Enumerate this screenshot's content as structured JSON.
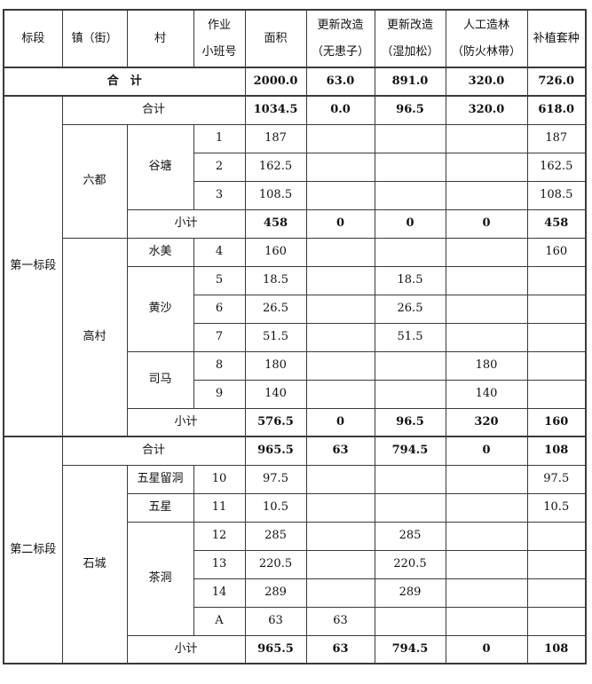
{
  "page": {
    "background": "#ffffff",
    "border_color": "#3a3a3a",
    "text_color": "#111111"
  },
  "table": {
    "header": [
      "标段",
      "镇（街）",
      "村",
      "作业\n小班号",
      "面积",
      "更新改造\n（无患子）",
      "更新改造\n（湿加松）",
      "人工造林\n（防火林带）",
      "补植套种"
    ],
    "rows": [
      {
        "type": "grand_total",
        "cells": [
          {
            "text": "合　计",
            "colspan": 4,
            "bold": true
          },
          {
            "text": "2000.0",
            "bold": true
          },
          {
            "text": "63.0",
            "bold": true
          },
          {
            "text": "891.0",
            "bold": true
          },
          {
            "text": "320.0",
            "bold": true
          },
          {
            "text": "726.0",
            "bold": true
          }
        ]
      },
      {
        "type": "section_total",
        "cells": [
          {
            "text": "第一标段",
            "rowspan": 12
          },
          {
            "text": "合计",
            "colspan": 3
          },
          {
            "text": "1034.5",
            "bold": true
          },
          {
            "text": "0.0",
            "bold": true
          },
          {
            "text": "96.5",
            "bold": true
          },
          {
            "text": "320.0",
            "bold": true
          },
          {
            "text": "618.0",
            "bold": true
          }
        ]
      },
      {
        "type": "data",
        "cells": [
          {
            "text": "六都",
            "rowspan": 4
          },
          {
            "text": "谷塘",
            "rowspan": 3
          },
          {
            "text": "1"
          },
          {
            "text": "187"
          },
          {
            "text": ""
          },
          {
            "text": ""
          },
          {
            "text": ""
          },
          {
            "text": "187"
          }
        ]
      },
      {
        "type": "data",
        "cells": [
          {
            "text": "2"
          },
          {
            "text": "162.5"
          },
          {
            "text": ""
          },
          {
            "text": ""
          },
          {
            "text": ""
          },
          {
            "text": "162.5"
          }
        ]
      },
      {
        "type": "data",
        "cells": [
          {
            "text": "3"
          },
          {
            "text": "108.5"
          },
          {
            "text": ""
          },
          {
            "text": ""
          },
          {
            "text": ""
          },
          {
            "text": "108.5"
          }
        ]
      },
      {
        "type": "subtotal",
        "cells": [
          {
            "text": "小计",
            "colspan": 2
          },
          {
            "text": "458",
            "bold": true
          },
          {
            "text": "0",
            "bold": true
          },
          {
            "text": "0",
            "bold": true
          },
          {
            "text": "0",
            "bold": true
          },
          {
            "text": "458",
            "bold": true
          }
        ]
      },
      {
        "type": "data",
        "cells": [
          {
            "text": "高村",
            "rowspan": 7
          },
          {
            "text": "水美"
          },
          {
            "text": "4"
          },
          {
            "text": "160"
          },
          {
            "text": ""
          },
          {
            "text": ""
          },
          {
            "text": ""
          },
          {
            "text": "160"
          }
        ]
      },
      {
        "type": "data",
        "cells": [
          {
            "text": "黄沙",
            "rowspan": 3
          },
          {
            "text": "5"
          },
          {
            "text": "18.5"
          },
          {
            "text": ""
          },
          {
            "text": "18.5"
          },
          {
            "text": ""
          },
          {
            "text": ""
          }
        ]
      },
      {
        "type": "data",
        "cells": [
          {
            "text": "6"
          },
          {
            "text": "26.5"
          },
          {
            "text": ""
          },
          {
            "text": "26.5"
          },
          {
            "text": ""
          },
          {
            "text": ""
          }
        ]
      },
      {
        "type": "data",
        "cells": [
          {
            "text": "7"
          },
          {
            "text": "51.5"
          },
          {
            "text": ""
          },
          {
            "text": "51.5"
          },
          {
            "text": ""
          },
          {
            "text": ""
          }
        ]
      },
      {
        "type": "data",
        "cells": [
          {
            "text": "司马",
            "rowspan": 2
          },
          {
            "text": "8"
          },
          {
            "text": "180"
          },
          {
            "text": ""
          },
          {
            "text": ""
          },
          {
            "text": "180"
          },
          {
            "text": ""
          }
        ]
      },
      {
        "type": "data",
        "cells": [
          {
            "text": "9"
          },
          {
            "text": "140"
          },
          {
            "text": ""
          },
          {
            "text": ""
          },
          {
            "text": "140"
          },
          {
            "text": ""
          }
        ]
      },
      {
        "type": "subtotal",
        "cells": [
          {
            "text": "小计",
            "colspan": 2
          },
          {
            "text": "576.5",
            "bold": true
          },
          {
            "text": "0",
            "bold": true
          },
          {
            "text": "96.5",
            "bold": true
          },
          {
            "text": "320",
            "bold": true
          },
          {
            "text": "160",
            "bold": true
          }
        ]
      },
      {
        "type": "section_total",
        "cells": [
          {
            "text": "第二标段",
            "rowspan": 8
          },
          {
            "text": "合计",
            "colspan": 3
          },
          {
            "text": "965.5",
            "bold": true
          },
          {
            "text": "63",
            "bold": true
          },
          {
            "text": "794.5",
            "bold": true
          },
          {
            "text": "0",
            "bold": true
          },
          {
            "text": "108",
            "bold": true
          }
        ]
      },
      {
        "type": "data",
        "cells": [
          {
            "text": "石城",
            "rowspan": 7
          },
          {
            "text": "五星留洞"
          },
          {
            "text": "10"
          },
          {
            "text": "97.5"
          },
          {
            "text": ""
          },
          {
            "text": ""
          },
          {
            "text": ""
          },
          {
            "text": "97.5"
          }
        ]
      },
      {
        "type": "data",
        "cells": [
          {
            "text": "五星"
          },
          {
            "text": "11"
          },
          {
            "text": "10.5"
          },
          {
            "text": ""
          },
          {
            "text": ""
          },
          {
            "text": ""
          },
          {
            "text": "10.5"
          }
        ]
      },
      {
        "type": "data",
        "cells": [
          {
            "text": "茶洞",
            "rowspan": 4
          },
          {
            "text": "12"
          },
          {
            "text": "285"
          },
          {
            "text": ""
          },
          {
            "text": "285"
          },
          {
            "text": ""
          },
          {
            "text": ""
          }
        ]
      },
      {
        "type": "data",
        "cells": [
          {
            "text": "13"
          },
          {
            "text": "220.5"
          },
          {
            "text": ""
          },
          {
            "text": "220.5"
          },
          {
            "text": ""
          },
          {
            "text": ""
          }
        ]
      },
      {
        "type": "data",
        "cells": [
          {
            "text": "14"
          },
          {
            "text": "289"
          },
          {
            "text": ""
          },
          {
            "text": "289"
          },
          {
            "text": ""
          },
          {
            "text": ""
          }
        ]
      },
      {
        "type": "data",
        "cells": [
          {
            "text": "A"
          },
          {
            "text": "63"
          },
          {
            "text": "63"
          },
          {
            "text": ""
          },
          {
            "text": ""
          },
          {
            "text": ""
          }
        ]
      },
      {
        "type": "subtotal",
        "cells": [
          {
            "text": "小计",
            "colspan": 2
          },
          {
            "text": "965.5",
            "bold": true
          },
          {
            "text": "63",
            "bold": true
          },
          {
            "text": "794.5",
            "bold": true
          },
          {
            "text": "0",
            "bold": true
          },
          {
            "text": "108",
            "bold": true
          }
        ]
      }
    ]
  }
}
